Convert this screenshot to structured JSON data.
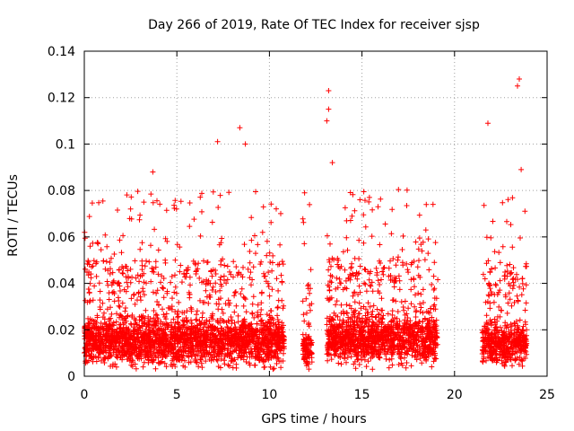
{
  "chart_data": {
    "type": "scatter",
    "title": "Day 266 of 2019, Rate Of TEC Index for receiver sjsp",
    "xlabel": "GPS time / hours",
    "ylabel": "ROTI / TECUs",
    "xlim": [
      0,
      25
    ],
    "ylim": [
      0,
      0.14
    ],
    "x_ticks": [
      0,
      5,
      10,
      15,
      20,
      25
    ],
    "x_tick_labels": [
      "0",
      "5",
      "10",
      "15",
      "20",
      "25"
    ],
    "y_ticks": [
      0,
      0.02,
      0.04,
      0.06,
      0.08,
      0.1,
      0.12,
      0.14
    ],
    "y_tick_labels": [
      "0",
      "0.02",
      "0.04",
      "0.06",
      "0.08",
      "0.1",
      "0.12",
      "0.14"
    ],
    "grid": true,
    "marker": "+",
    "series_color": "#ff0000",
    "data_segments": [
      {
        "start": 0.0,
        "end": 10.8,
        "base": 0.015,
        "spread": 0.008
      },
      {
        "start": 11.8,
        "end": 12.3,
        "base": 0.012,
        "spread": 0.006
      },
      {
        "start": 13.1,
        "end": 19.1,
        "base": 0.016,
        "spread": 0.008
      },
      {
        "start": 21.5,
        "end": 23.9,
        "base": 0.014,
        "spread": 0.007
      }
    ],
    "notable_points": [
      {
        "x": 8.4,
        "y": 0.107
      },
      {
        "x": 8.7,
        "y": 0.1
      },
      {
        "x": 7.2,
        "y": 0.101
      },
      {
        "x": 3.7,
        "y": 0.088
      },
      {
        "x": 13.2,
        "y": 0.123
      },
      {
        "x": 13.2,
        "y": 0.115
      },
      {
        "x": 13.1,
        "y": 0.11
      },
      {
        "x": 13.4,
        "y": 0.092
      },
      {
        "x": 21.8,
        "y": 0.109
      },
      {
        "x": 23.5,
        "y": 0.128
      },
      {
        "x": 23.4,
        "y": 0.125
      },
      {
        "x": 23.6,
        "y": 0.089
      },
      {
        "x": 11.9,
        "y": 0.079
      },
      {
        "x": 15.4,
        "y": 0.077
      },
      {
        "x": 2.5,
        "y": 0.072
      }
    ]
  }
}
